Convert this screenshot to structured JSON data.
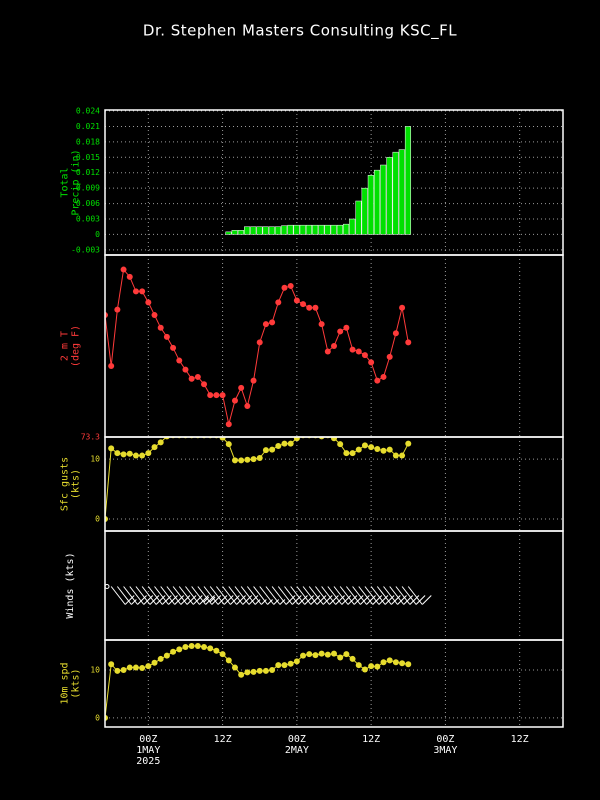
{
  "chart_data": {
    "type": "meteogram",
    "title": "Dr. Stephen Masters Consulting  KSC_FL",
    "x": [
      -7,
      -6,
      -5,
      -4,
      -3,
      -2,
      -1,
      0,
      1,
      2,
      3,
      4,
      5,
      6,
      7,
      8,
      9,
      10,
      11,
      12,
      13,
      14,
      15,
      16,
      17,
      18,
      19,
      20,
      21,
      22,
      23,
      24,
      25,
      26,
      27,
      28,
      29,
      30,
      31,
      32,
      33,
      34,
      35,
      36,
      37,
      38,
      39,
      40,
      41,
      42
    ],
    "xlim": [
      -7,
      67
    ],
    "xticks": [
      {
        "value": 0,
        "label": "00Z"
      },
      {
        "value": 12,
        "label": "12Z"
      },
      {
        "value": 24,
        "label": "00Z"
      },
      {
        "value": 36,
        "label": "12Z"
      },
      {
        "value": 48,
        "label": "00Z"
      },
      {
        "value": 60,
        "label": "12Z"
      }
    ],
    "x_dates": [
      {
        "value": 0,
        "label": "1MAY"
      },
      {
        "value": 24,
        "label": "2MAY"
      },
      {
        "value": 48,
        "label": "3MAY"
      }
    ],
    "x_year": {
      "value": 0,
      "label": "2025"
    },
    "grid": true,
    "panels": [
      {
        "type": "bar",
        "ylabel": [
          "Total",
          "Precip (in)"
        ],
        "color": "#00e000",
        "values": [
          0,
          0,
          0,
          0,
          0,
          0,
          0,
          0,
          0,
          0,
          0,
          0,
          0,
          0,
          0,
          0,
          0,
          0,
          0,
          0,
          0.0005,
          0.0008,
          0.0008,
          0.0015,
          0.0015,
          0.0015,
          0.0015,
          0.0015,
          0.0015,
          0.0017,
          0.0018,
          0.0018,
          0.0018,
          0.0018,
          0.0018,
          0.0018,
          0.0018,
          0.0018,
          0.0018,
          0.002,
          0.003,
          0.0065,
          0.009,
          0.0115,
          0.0125,
          0.0135,
          0.015,
          0.016,
          0.0165,
          0.021
        ],
        "ylim": [
          -0.004,
          0.0242
        ],
        "yticks": [
          -0.003,
          0,
          0.003,
          0.006,
          0.009,
          0.012,
          0.015,
          0.018,
          0.021,
          0.024
        ]
      },
      {
        "type": "line",
        "ylabel": [
          "2 m T",
          "(deg F)"
        ],
        "color": "#ff3a3a",
        "values": [
          80.0,
          77.2,
          80.3,
          82.5,
          82.1,
          81.3,
          81.3,
          80.7,
          80.0,
          79.3,
          78.8,
          78.2,
          77.5,
          77.0,
          76.5,
          76.6,
          76.2,
          75.6,
          75.6,
          75.6,
          74.0,
          75.3,
          76.0,
          75.0,
          76.4,
          78.5,
          79.5,
          79.6,
          80.7,
          81.5,
          81.6,
          80.8,
          80.6,
          80.4,
          80.4,
          79.5,
          78.0,
          78.3,
          79.1,
          79.3,
          78.1,
          78.0,
          77.8,
          77.4,
          76.4,
          76.6,
          77.7,
          79.0,
          80.4,
          78.5
        ],
        "ylim": [
          73.3,
          83.3
        ],
        "yticks": [
          73.3
        ]
      },
      {
        "type": "line",
        "ylabel": [
          "Sfc gusts",
          "(kts)"
        ],
        "color": "#e6dc2e",
        "values": [
          0,
          11.8,
          11,
          10.8,
          10.9,
          10.6,
          10.6,
          11,
          12,
          12.8,
          13.8,
          14,
          14,
          14,
          14,
          14,
          14,
          14,
          14,
          13.6,
          12.5,
          9.8,
          9.8,
          9.9,
          10,
          10.2,
          11.5,
          11.6,
          12.2,
          12.6,
          12.6,
          13.5,
          14,
          14,
          14,
          13.8,
          14,
          13.5,
          12.5,
          11,
          11,
          11.6,
          12.3,
          12,
          11.7,
          11.4,
          11.6,
          10.6,
          10.6,
          12.6
        ],
        "ylim": [
          -2,
          13.7
        ],
        "yticks": [
          0,
          10
        ]
      },
      {
        "type": "barbs",
        "ylabel": [
          "Winds (kts)"
        ],
        "color": "#ffffff",
        "values": [
          0,
          11.2,
          9.8,
          10,
          10.5,
          10.5,
          10.4,
          10.8,
          11.5,
          12.3,
          13,
          13.8,
          14.3,
          14.8,
          15,
          15,
          14.8,
          14.5,
          14,
          13.3,
          12,
          10.5,
          9,
          9.5,
          9.6,
          9.8,
          9.8,
          10,
          11,
          11,
          11.3,
          11.8,
          13,
          13.3,
          13.1,
          13.4,
          13.2,
          13.4,
          12.6,
          13.3,
          12.3,
          11,
          10.1,
          10.8,
          10.7,
          11.6,
          12,
          11.6,
          11.4,
          11.2
        ]
      },
      {
        "type": "line",
        "ylabel": [
          "10m spd",
          "(kts)"
        ],
        "color": "#e6dc2e",
        "values": [
          0,
          11.2,
          9.8,
          10,
          10.5,
          10.5,
          10.4,
          10.8,
          11.5,
          12.3,
          13,
          13.8,
          14.3,
          14.8,
          15,
          15,
          14.8,
          14.5,
          14,
          13.3,
          12,
          10.5,
          9,
          9.5,
          9.6,
          9.8,
          9.8,
          10,
          11,
          11,
          11.3,
          11.8,
          13,
          13.3,
          13.1,
          13.4,
          13.2,
          13.4,
          12.6,
          13.3,
          12.3,
          11,
          10.1,
          10.8,
          10.7,
          11.6,
          12,
          11.6,
          11.4,
          11.2
        ],
        "ylim": [
          -1.9,
          16.25
        ],
        "yticks": [
          0,
          10
        ]
      }
    ]
  }
}
